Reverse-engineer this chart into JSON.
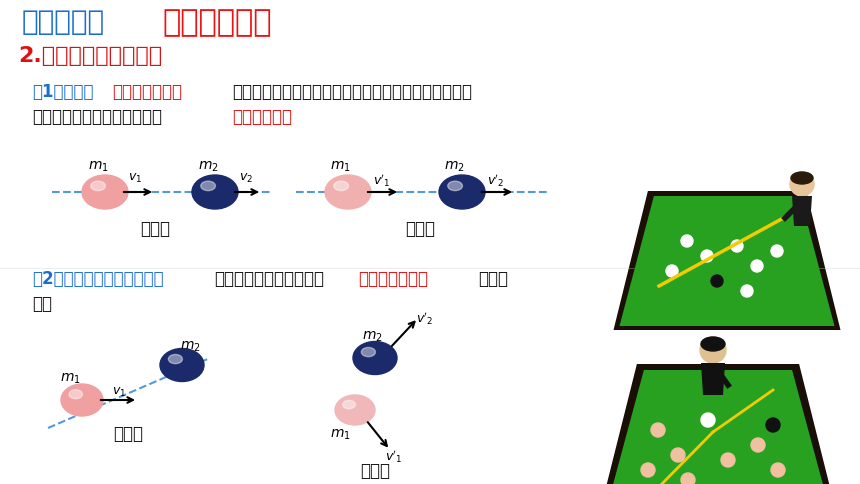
{
  "bg_color": "#ffffff",
  "title_blue_text": "新知讲解：",
  "title_red_text": "二、弹性碰撞",
  "subtitle_text": "2.弹性碰撞的实例分析",
  "line1_part1": "（1）正碰：",
  "line1_part2": "碰撞前和碰撞后",
  "line1_part3": "，物体的运动方向在同一直线上。这种碰撞称为正碰，",
  "line2_part1": "也叫作对心碰撞或一维碰撞。",
  "line2_part2": "（重点掌握）",
  "label_before1": "碰撞前",
  "label_after1": "碰撞后",
  "line3_part1": "（2）斜碰（非对心碰撞）：",
  "line3_part2": "碰撞前后物体的运动方向",
  "line3_part3": "不在同一直线上",
  "line3_part4": "，如图",
  "line4_part1": "所示",
  "label_before2": "碰撞前",
  "label_after2": "碰撞后",
  "color_blue": "#1a6ecc",
  "color_red": "#dd1111",
  "color_black": "#111111",
  "color_darkblue": "#2a3a7a",
  "color_pink": "#f0a0a0",
  "color_pink_light": "#f5c0c0",
  "color_dashed": "#5599dd",
  "color_navy": "#1a2a6a",
  "title_blue_color": "#1a6ecc",
  "title_red_color": "#ee1111"
}
